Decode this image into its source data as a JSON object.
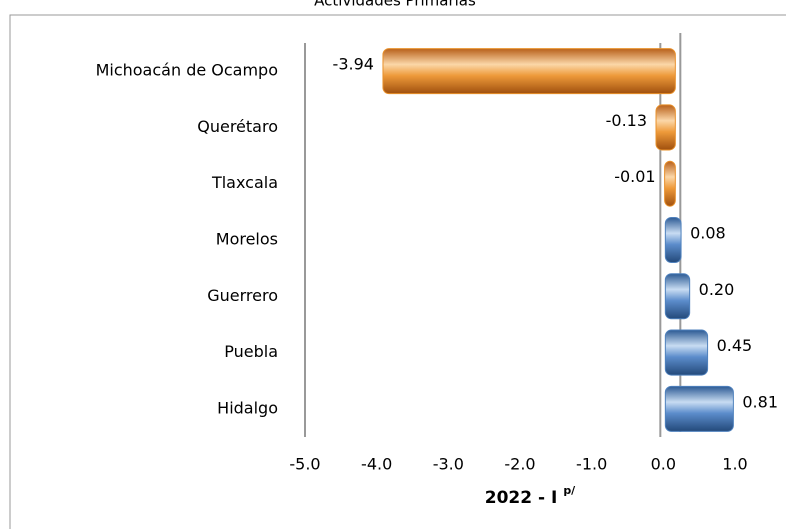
{
  "chart_data": {
    "type": "bar",
    "orientation": "horizontal",
    "title": "Actividades Primarias",
    "categories": [
      "Michoacán de Ocampo",
      "Querétaro",
      "Tlaxcala",
      "Morelos",
      "Guerrero",
      "Puebla",
      "Hidalgo"
    ],
    "values": [
      -3.94,
      -0.13,
      -0.01,
      0.08,
      0.2,
      0.45,
      0.81
    ],
    "value_labels": [
      "-3.94",
      "-0.13",
      "-0.01",
      "0.08",
      "0.20",
      "0.45",
      "0.81"
    ],
    "negative_color": "#e8902a",
    "positive_color": "#4f81bd",
    "xlim": [
      -5,
      1
    ],
    "xticks": [
      {
        "value": -5,
        "label": "-5.0"
      },
      {
        "value": -4,
        "label": "-4.0"
      },
      {
        "value": -3,
        "label": "-3.0"
      },
      {
        "value": -2,
        "label": "-2.0"
      },
      {
        "value": -1,
        "label": "-1.0"
      },
      {
        "value": 0,
        "label": "0.0"
      },
      {
        "value": 1,
        "label": "1.0"
      }
    ],
    "x_label": "2022 - I",
    "x_label_sup": "p/"
  }
}
